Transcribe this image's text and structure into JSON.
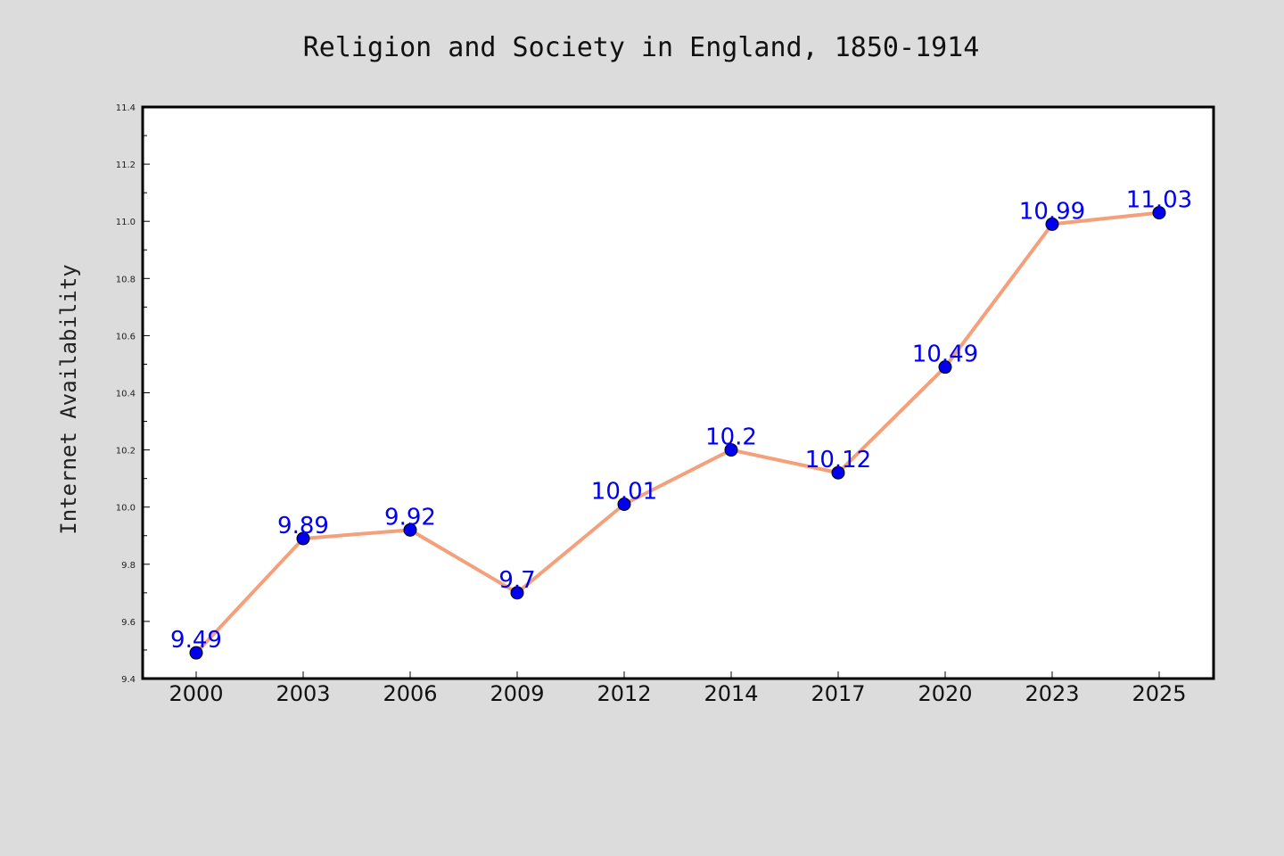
{
  "chart_data": {
    "type": "line",
    "title": "Religion and Society in England, 1850-1914",
    "xlabel": "",
    "ylabel": "Internet Availability",
    "categories": [
      "2000",
      "2003",
      "2006",
      "2009",
      "2012",
      "2014",
      "2017",
      "2020",
      "2023",
      "2025"
    ],
    "series": [
      {
        "values": [
          9.49,
          9.89,
          9.92,
          9.7,
          10.01,
          10.2,
          10.12,
          10.49,
          10.99,
          11.03
        ]
      }
    ],
    "data_labels": [
      "9.49",
      "9.89",
      "9.92",
      "9.7",
      "10.01",
      "10.2",
      "10.12",
      "10.49",
      "10.99",
      "11.03"
    ],
    "ylim": [
      9.4,
      11.4
    ],
    "yticks": [
      "9.4",
      "9.6",
      "9.8",
      "10.0",
      "10.2",
      "10.4",
      "10.6",
      "10.8",
      "11.0",
      "11.2",
      "11.4"
    ],
    "grid": false,
    "colors": {
      "line": "#f4a07a",
      "marker": "#0000ee",
      "label": "#0000ee",
      "background": "#dcdcdc",
      "plot_background": "#ffffff"
    }
  }
}
